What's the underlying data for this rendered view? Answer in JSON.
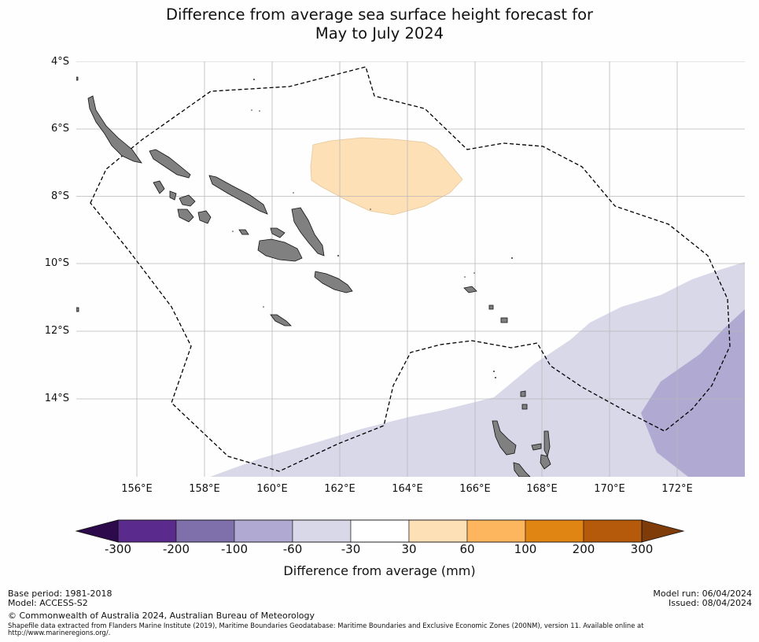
{
  "title": {
    "line1": "Difference from average sea surface height forecast for",
    "line2": "May to July 2024"
  },
  "map": {
    "lat_ticks": [
      "4°S",
      "6°S",
      "8°S",
      "10°S",
      "12°S",
      "14°S"
    ],
    "lon_ticks": [
      "156°E",
      "158°E",
      "160°E",
      "162°E",
      "164°E",
      "166°E",
      "168°E",
      "170°E",
      "172°E"
    ],
    "extent": {
      "lon_min": 154.2,
      "lon_max": 173.95,
      "lat_north": -4.0,
      "lat_south": -16.3
    },
    "colors": {
      "land": "#808080",
      "eez_boundary": "#000000",
      "gridline": "#b9b9b9"
    },
    "anomaly_regions": [
      {
        "class": "30 to 60",
        "color": "#fde0b6"
      },
      {
        "class": "-60 to -30",
        "color": "#d8d8e9"
      },
      {
        "class": "-100 to -60",
        "color": "#b0a9d1"
      }
    ]
  },
  "colorbar": {
    "labels": [
      "-300",
      "-200",
      "-100",
      "-60",
      "-30",
      "30",
      "60",
      "100",
      "200",
      "300"
    ],
    "colors": [
      "#5a2a8c",
      "#7f6fab",
      "#b0a9d1",
      "#d8d8e9",
      "#ffffff",
      "#fde0b6",
      "#fdb65e",
      "#e08414",
      "#b45a0a"
    ],
    "extend_low_color": "#2d0a4b",
    "extend_high_color": "#7f3b08",
    "title": "Difference from average (mm)"
  },
  "footer": {
    "base_period": "Base period: 1981-2018",
    "model": "Model: ACCESS-S2",
    "model_run": "Model run: 06/04/2024",
    "issued": "Issued: 08/04/2024",
    "copyright": "© Commonwealth of Australia 2024, Australian Bureau of Meteorology",
    "shapefile": "Shapefile data extracted from Flanders Marine Institute (2019), Maritime Boundaries Geodatabase: Maritime Boundaries and Exclusive Economic Zones (200NM), version 11. Available online at http://www.marineregions.org/."
  }
}
